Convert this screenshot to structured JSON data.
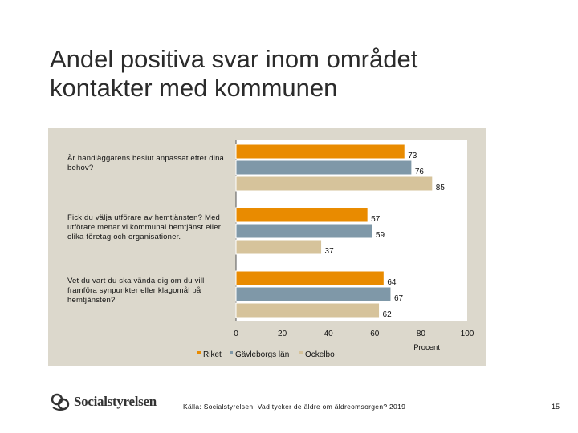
{
  "slide": {
    "title_line1": "Andel positiva svar inom området",
    "title_line2": "kontakter med kommunen",
    "logo_text": "Socialstyrelsen",
    "source": "Källa: Socialstyrelsen, Vad tycker de äldre om äldreomsorgen? 2019",
    "page_number": "15"
  },
  "chart_data": {
    "type": "bar",
    "orientation": "horizontal",
    "categories": [
      "Är handläggarens beslut anpassat efter dina behov?",
      "Fick du välja utförare av hemtjänsten? Med utförare menar vi kommunal hemtjänst eller olika företag och organisationer.",
      "Vet du vart du ska vända dig om du vill framföra synpunkter eller klagomål på hemtjänsten?"
    ],
    "series": [
      {
        "name": "Riket",
        "values": [
          73,
          57,
          64
        ],
        "color": "#e98b00"
      },
      {
        "name": "Gävleborgs län",
        "values": [
          76,
          59,
          67
        ],
        "color": "#7f98a8"
      },
      {
        "name": "Ockelbo",
        "values": [
          85,
          37,
          62
        ],
        "color": "#d6c39b"
      }
    ],
    "xlabel": "Procent",
    "xlim": [
      0,
      100
    ],
    "xticks": [
      "0",
      "20",
      "40",
      "60",
      "80",
      "100"
    ],
    "legend_position": "bottom",
    "grid": false
  }
}
